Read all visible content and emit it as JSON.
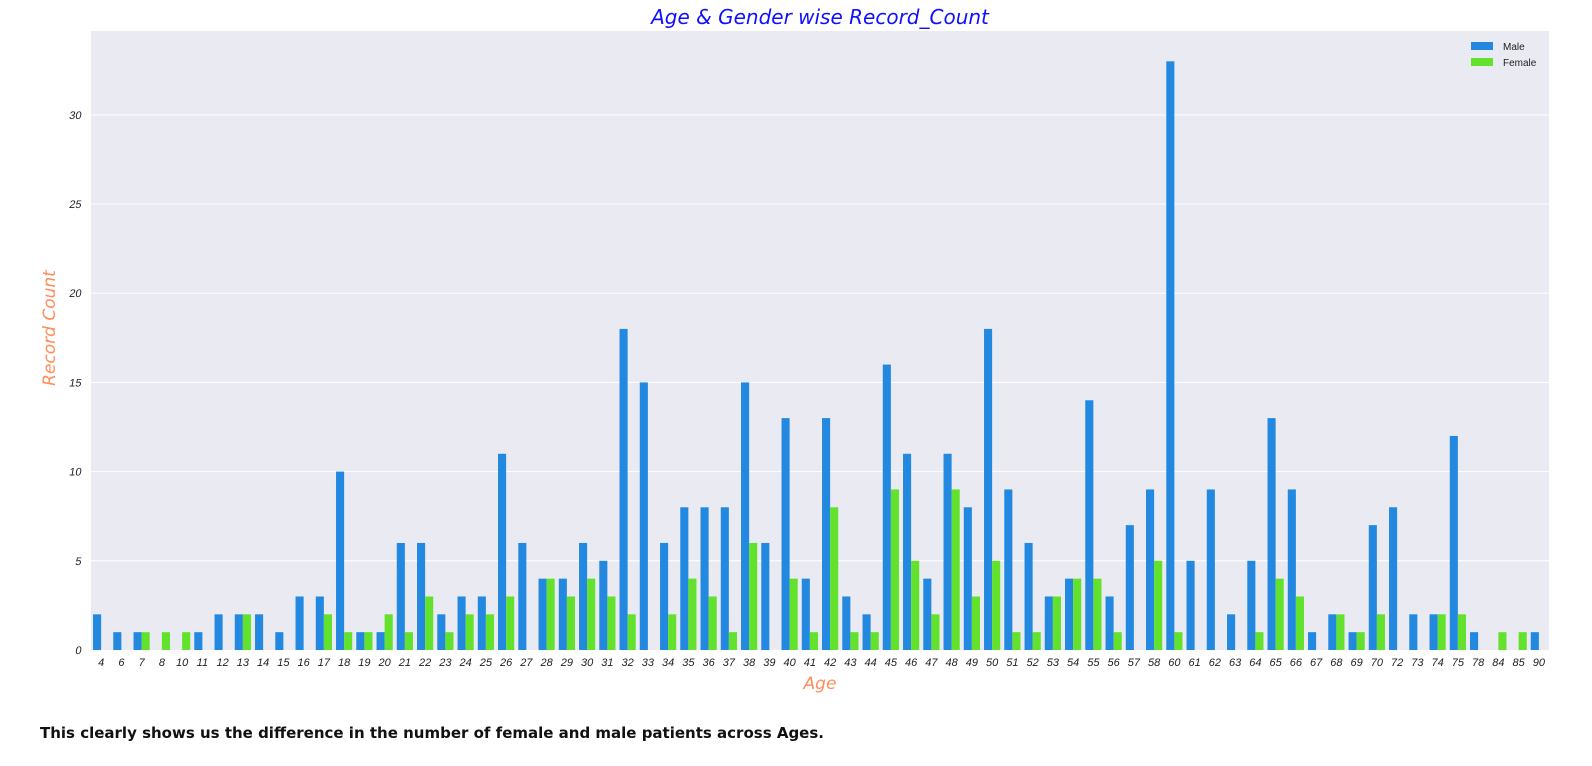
{
  "chart_data": {
    "type": "bar",
    "title": "Age & Gender wise Record_Count",
    "xlabel": "Age",
    "ylabel": "Record Count",
    "ylim": [
      0,
      34.7
    ],
    "yticks": [
      0,
      5,
      10,
      15,
      20,
      25,
      30
    ],
    "grid": true,
    "legend_position": "top-right",
    "categories": [
      "4",
      "6",
      "7",
      "8",
      "10",
      "11",
      "12",
      "13",
      "14",
      "15",
      "16",
      "17",
      "18",
      "19",
      "20",
      "21",
      "22",
      "23",
      "24",
      "25",
      "26",
      "27",
      "28",
      "29",
      "30",
      "31",
      "32",
      "33",
      "34",
      "35",
      "36",
      "37",
      "38",
      "39",
      "40",
      "41",
      "42",
      "43",
      "44",
      "45",
      "46",
      "47",
      "48",
      "49",
      "50",
      "51",
      "52",
      "53",
      "54",
      "55",
      "56",
      "57",
      "58",
      "60",
      "61",
      "62",
      "63",
      "64",
      "65",
      "66",
      "67",
      "68",
      "69",
      "70",
      "72",
      "73",
      "74",
      "75",
      "78",
      "84",
      "85",
      "90"
    ],
    "series": [
      {
        "name": "Male",
        "color": "#2389e0",
        "values": [
          2,
          1,
          1,
          0,
          0,
          1,
          2,
          2,
          2,
          1,
          3,
          3,
          10,
          1,
          1,
          6,
          6,
          2,
          3,
          3,
          11,
          6,
          4,
          4,
          6,
          5,
          18,
          15,
          6,
          8,
          8,
          8,
          15,
          6,
          13,
          4,
          13,
          3,
          2,
          16,
          11,
          4,
          11,
          8,
          18,
          9,
          6,
          3,
          4,
          14,
          3,
          7,
          9,
          33,
          5,
          9,
          2,
          5,
          13,
          9,
          1,
          2,
          1,
          7,
          8,
          2,
          2,
          12,
          1,
          0,
          0,
          1
        ]
      },
      {
        "name": "Female",
        "color": "#62e22c",
        "values": [
          0,
          0,
          1,
          1,
          1,
          0,
          0,
          2,
          0,
          0,
          0,
          2,
          1,
          1,
          2,
          1,
          3,
          1,
          2,
          2,
          3,
          0,
          4,
          3,
          4,
          3,
          2,
          0,
          2,
          4,
          3,
          1,
          6,
          0,
          4,
          1,
          8,
          1,
          1,
          9,
          5,
          2,
          9,
          3,
          5,
          1,
          1,
          3,
          4,
          4,
          1,
          0,
          5,
          1,
          0,
          0,
          0,
          1,
          4,
          3,
          0,
          2,
          1,
          2,
          0,
          0,
          2,
          2,
          0,
          1,
          1,
          0
        ]
      }
    ]
  },
  "caption": "This clearly shows us the difference in the number of female and male patients across Ages.",
  "colors": {
    "plot_background": "#eaeaf2",
    "grid": "#ffffff",
    "title": "#1010ff",
    "axis_label": "#ff8c5a",
    "tick_text": "#222222"
  }
}
